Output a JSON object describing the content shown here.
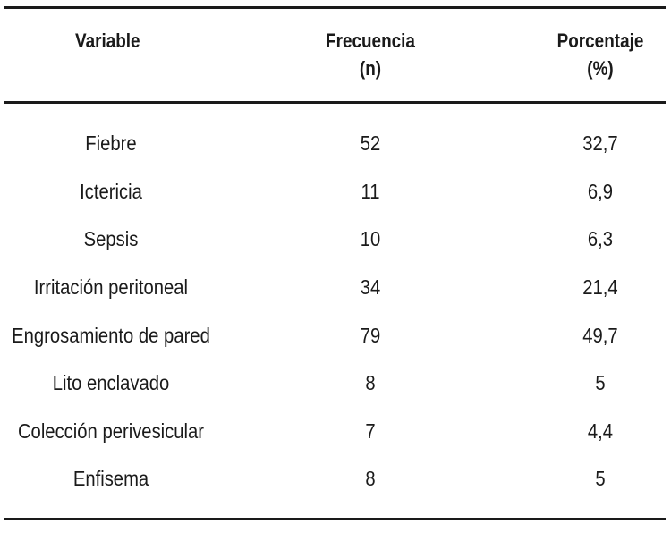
{
  "table": {
    "headers": {
      "variable": "Variable",
      "frecuencia": [
        "Frecuencia",
        "(n)"
      ],
      "porcentaje": [
        "Porcentaje",
        "(%)"
      ]
    },
    "rows": [
      {
        "variable": "Fiebre",
        "frecuencia": "52",
        "porcentaje": "32,7"
      },
      {
        "variable": "Ictericia",
        "frecuencia": "11",
        "porcentaje": "6,9"
      },
      {
        "variable": "Sepsis",
        "frecuencia": "10",
        "porcentaje": "6,3"
      },
      {
        "variable": "Irritación peritoneal",
        "frecuencia": "34",
        "porcentaje": "21,4"
      },
      {
        "variable": "Engrosamiento de pared",
        "frecuencia": "79",
        "porcentaje": "49,7"
      },
      {
        "variable": "Lito enclavado",
        "frecuencia": "8",
        "porcentaje": "5"
      },
      {
        "variable": "Colección perivesicular",
        "frecuencia": "7",
        "porcentaje": "4,4"
      },
      {
        "variable": "Enfisema",
        "frecuencia": "8",
        "porcentaje": "5"
      }
    ]
  }
}
